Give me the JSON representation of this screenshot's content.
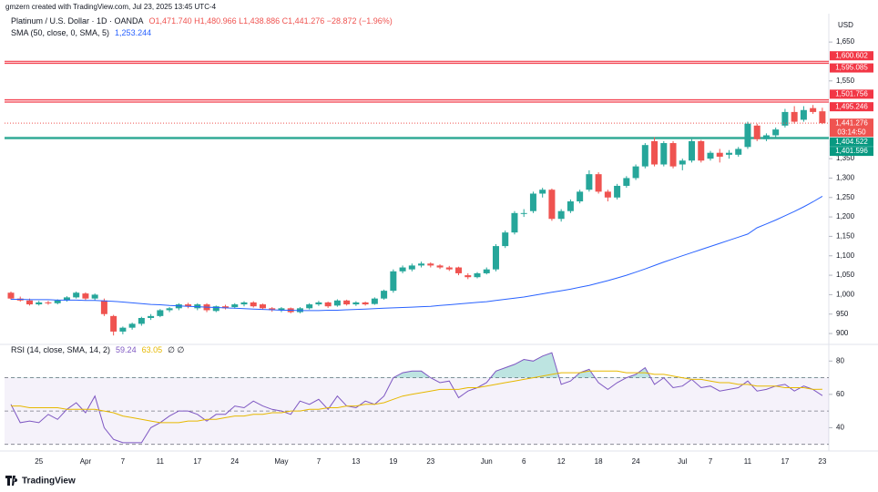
{
  "header": {
    "credit": "gmzern created with TradingView.com, Jul 23, 2025 13:45 UTC-4",
    "symbol": "Platinum / U.S. Dollar · 1D · OANDA",
    "ohlc": "O1,471.740 H1,480.966 L1,438.886 C1,441.276 −28.872 (−1.96%)",
    "sma_value": "1,253.244",
    "rsi_value": "59.24",
    "rsi_ma_value": "63.05",
    "rsi_extra": "∅ ∅"
  },
  "currency": "USD",
  "countdown": "03:14:50",
  "brand": "TradingView",
  "chart_data": [
    {
      "type": "candlestick",
      "up_color": "#26a69a",
      "down_color": "#ef5350",
      "categories": [
        null,
        null,
        null,
        "25",
        null,
        null,
        null,
        null,
        "Apr",
        null,
        null,
        null,
        "7",
        null,
        null,
        null,
        "11",
        null,
        null,
        null,
        "17",
        null,
        null,
        null,
        "24",
        null,
        null,
        null,
        null,
        "May",
        null,
        null,
        null,
        "7",
        null,
        null,
        null,
        "13",
        null,
        null,
        null,
        "19",
        null,
        null,
        null,
        "23",
        null,
        null,
        null,
        null,
        null,
        "Jun",
        null,
        null,
        null,
        "6",
        null,
        null,
        null,
        "12",
        null,
        null,
        null,
        "18",
        null,
        null,
        null,
        "24",
        null,
        null,
        null,
        null,
        "Jul",
        null,
        null,
        "7",
        null,
        null,
        null,
        "11",
        null,
        null,
        null,
        "17",
        null,
        null,
        null,
        "23"
      ],
      "candles": [
        [
          1005,
          1008,
          987,
          990
        ],
        [
          990,
          995,
          982,
          985
        ],
        [
          985,
          990,
          972,
          975
        ],
        [
          975,
          984,
          972,
          980
        ],
        [
          980,
          984,
          974,
          978
        ],
        [
          978,
          988,
          975,
          985
        ],
        [
          985,
          996,
          982,
          993
        ],
        [
          993,
          1008,
          990,
          1005
        ],
        [
          1003,
          1006,
          986,
          990
        ],
        [
          990,
          1003,
          985,
          1000
        ],
        [
          985,
          990,
          945,
          950
        ],
        [
          945,
          948,
          895,
          905
        ],
        [
          905,
          918,
          898,
          915
        ],
        [
          915,
          928,
          910,
          925
        ],
        [
          925,
          943,
          920,
          940
        ],
        [
          940,
          950,
          935,
          945
        ],
        [
          945,
          963,
          942,
          960
        ],
        [
          960,
          968,
          955,
          965
        ],
        [
          965,
          978,
          960,
          975
        ],
        [
          975,
          979,
          965,
          970
        ],
        [
          965,
          978,
          960,
          975
        ],
        [
          975,
          978,
          955,
          960
        ],
        [
          958,
          972,
          955,
          970
        ],
        [
          970,
          974,
          962,
          965
        ],
        [
          968,
          978,
          964,
          975
        ],
        [
          975,
          983,
          970,
          980
        ],
        [
          980,
          983,
          967,
          970
        ],
        [
          975,
          977,
          962,
          965
        ],
        [
          965,
          968,
          956,
          960
        ],
        [
          960,
          968,
          955,
          965
        ],
        [
          965,
          967,
          952,
          955
        ],
        [
          955,
          968,
          952,
          965
        ],
        [
          965,
          978,
          962,
          975
        ],
        [
          975,
          984,
          971,
          980
        ],
        [
          980,
          982,
          966,
          970
        ],
        [
          972,
          988,
          969,
          985
        ],
        [
          985,
          987,
          972,
          975
        ],
        [
          975,
          983,
          971,
          980
        ],
        [
          980,
          982,
          972,
          975
        ],
        [
          976,
          993,
          974,
          990
        ],
        [
          990,
          1013,
          987,
          1010
        ],
        [
          1010,
          1065,
          1005,
          1060
        ],
        [
          1060,
          1075,
          1055,
          1070
        ],
        [
          1065,
          1080,
          1060,
          1075
        ],
        [
          1075,
          1085,
          1070,
          1080
        ],
        [
          1080,
          1083,
          1070,
          1075
        ],
        [
          1075,
          1078,
          1066,
          1070
        ],
        [
          1070,
          1074,
          1061,
          1065
        ],
        [
          1070,
          1072,
          1050,
          1055
        ],
        [
          1050,
          1055,
          1040,
          1045
        ],
        [
          1045,
          1058,
          1042,
          1055
        ],
        [
          1055,
          1070,
          1052,
          1065
        ],
        [
          1065,
          1130,
          1060,
          1125
        ],
        [
          1125,
          1165,
          1120,
          1160
        ],
        [
          1160,
          1215,
          1155,
          1210
        ],
        [
          1210,
          1220,
          1200,
          1210
        ],
        [
          1215,
          1265,
          1210,
          1260
        ],
        [
          1260,
          1275,
          1250,
          1270
        ],
        [
          1270,
          1273,
          1190,
          1195
        ],
        [
          1195,
          1220,
          1188,
          1215
        ],
        [
          1215,
          1245,
          1210,
          1240
        ],
        [
          1240,
          1270,
          1235,
          1265
        ],
        [
          1270,
          1320,
          1265,
          1310
        ],
        [
          1310,
          1315,
          1260,
          1265
        ],
        [
          1265,
          1270,
          1240,
          1250
        ],
        [
          1250,
          1285,
          1245,
          1280
        ],
        [
          1280,
          1305,
          1275,
          1300
        ],
        [
          1300,
          1335,
          1295,
          1330
        ],
        [
          1330,
          1390,
          1325,
          1385
        ],
        [
          1395,
          1405,
          1330,
          1335
        ],
        [
          1335,
          1395,
          1330,
          1390
        ],
        [
          1390,
          1395,
          1325,
          1330
        ],
        [
          1335,
          1350,
          1320,
          1345
        ],
        [
          1345,
          1400,
          1340,
          1395
        ],
        [
          1395,
          1398,
          1340,
          1345
        ],
        [
          1350,
          1370,
          1345,
          1365
        ],
        [
          1365,
          1375,
          1340,
          1355
        ],
        [
          1360,
          1372,
          1350,
          1365
        ],
        [
          1360,
          1380,
          1355,
          1375
        ],
        [
          1380,
          1445,
          1375,
          1440
        ],
        [
          1435,
          1440,
          1395,
          1400
        ],
        [
          1400,
          1415,
          1395,
          1410
        ],
        [
          1410,
          1430,
          1405,
          1425
        ],
        [
          1435,
          1478,
          1430,
          1470
        ],
        [
          1470,
          1485,
          1440,
          1445
        ],
        [
          1450,
          1485,
          1445,
          1475
        ],
        [
          1480,
          1488,
          1465,
          1470
        ],
        [
          1471.74,
          1480.966,
          1438.886,
          1441.276
        ]
      ],
      "series": [
        {
          "name": "SMA (50, close, 0, SMA, 5)",
          "color": "#2962ff",
          "values": [
            988,
            988,
            987,
            987,
            987,
            986,
            986,
            986,
            985,
            985,
            984,
            983,
            981,
            979,
            977,
            975,
            974,
            972,
            971,
            970,
            969,
            968,
            967,
            966,
            965,
            964,
            963,
            962,
            961,
            960,
            960,
            959,
            959,
            959,
            960,
            960,
            961,
            962,
            963,
            964,
            965,
            966,
            967,
            968,
            969,
            970,
            972,
            974,
            976,
            978,
            980,
            982,
            985,
            988,
            991,
            994,
            998,
            1002,
            1006,
            1010,
            1014,
            1019,
            1024,
            1030,
            1036,
            1043,
            1050,
            1058,
            1066,
            1075,
            1084,
            1092,
            1100,
            1108,
            1116,
            1124,
            1132,
            1140,
            1148,
            1156,
            1172,
            1182,
            1192,
            1203,
            1214,
            1226,
            1239,
            1253.244
          ]
        }
      ],
      "levels": [
        {
          "values": [
            1600.602,
            1595.085
          ],
          "labels": [
            "1,600.602",
            "1,595.085"
          ],
          "color": "#f23645"
        },
        {
          "values": [
            1501.756,
            1495.246
          ],
          "labels": [
            "1,501.756",
            "1,495.246"
          ],
          "color": "#f23645"
        },
        {
          "values": [
            1404.522,
            1401.596
          ],
          "labels": [
            "1,404.522",
            "1,401.596"
          ],
          "color": "#089981"
        }
      ],
      "last_price": {
        "value": 1441.276,
        "label": "1,441.276"
      },
      "ylim": [
        872,
        1723
      ],
      "yticks": [
        {
          "value": 1650,
          "label": "1,650"
        },
        {
          "value": 1550,
          "label": "1,550"
        },
        {
          "value": 1350,
          "label": "1,350"
        },
        {
          "value": 1300,
          "label": "1,300"
        },
        {
          "value": 1250,
          "label": "1,250"
        },
        {
          "value": 1200,
          "label": "1,200"
        },
        {
          "value": 1150,
          "label": "1,150"
        },
        {
          "value": 1100,
          "label": "1,100"
        },
        {
          "value": 1050,
          "label": "1,050"
        },
        {
          "value": 1000,
          "label": "1,000"
        },
        950,
        900
      ]
    },
    {
      "type": "line",
      "series": [
        {
          "name": "RSI (14, close, SMA, 14, 2)",
          "color": "#7e57c2",
          "values": [
            54,
            43,
            44,
            43,
            48,
            45,
            51,
            55,
            49,
            59,
            40,
            33,
            31,
            31,
            31,
            40,
            43,
            47,
            50,
            50,
            48,
            44,
            48,
            48,
            53,
            52,
            56,
            53,
            51,
            50,
            48,
            56,
            54,
            57,
            51,
            59,
            53,
            52,
            56,
            54,
            59,
            70,
            73,
            74,
            74,
            70,
            67,
            68,
            58,
            62,
            64,
            67,
            74,
            76,
            78,
            81,
            80,
            83,
            85,
            66,
            68,
            73,
            75,
            67,
            63,
            67,
            70,
            72,
            76,
            66,
            70,
            64,
            65,
            69,
            64,
            65,
            62,
            63,
            64,
            68,
            62,
            63,
            65,
            66,
            62,
            65,
            63,
            59.24
          ]
        },
        {
          "color": "#e6b800",
          "values": [
            53,
            53,
            52,
            52,
            52,
            52,
            51,
            51,
            51,
            51,
            50,
            49,
            47,
            46,
            45,
            44,
            43,
            43,
            43,
            44,
            44,
            45,
            45,
            46,
            47,
            47,
            48,
            48,
            49,
            49,
            50,
            50,
            51,
            51,
            52,
            52,
            53,
            53,
            54,
            54,
            55,
            57,
            59,
            60,
            61,
            62,
            63,
            63,
            63,
            64,
            64,
            65,
            66,
            67,
            68,
            69,
            70,
            71,
            72,
            73,
            73,
            73,
            74,
            74,
            74,
            74,
            73,
            73,
            73,
            72,
            72,
            71,
            70,
            69,
            69,
            68,
            67,
            67,
            66,
            66,
            65,
            65,
            65,
            64,
            64,
            64,
            63,
            63.05
          ]
        }
      ],
      "bands": {
        "upper": 70,
        "middle": 50,
        "lower": 30
      },
      "ylim": [
        26,
        90
      ],
      "yticks": [
        80,
        60,
        40
      ]
    }
  ]
}
